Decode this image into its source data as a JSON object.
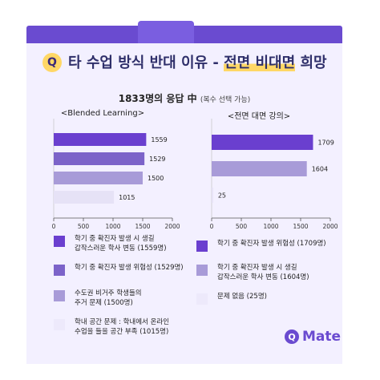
{
  "header": {
    "badge": "Q",
    "title_plain": "타 수업 방식 반대 이유 - ",
    "title_highlight": "전면 비대면",
    "title_suffix": " 희망"
  },
  "subtitle": {
    "main": "1833명의 응답 中 ",
    "note": "(복수 선택 가능)"
  },
  "colors": {
    "topbar": "#6a4bd0",
    "bar_dark": "#6a3fcf",
    "bar_mid": "#7c63c9",
    "bar_light": "#a89bd8",
    "bar_pale": "#e6e2f6",
    "accent": "#ffd766"
  },
  "chart_data": [
    {
      "type": "bar",
      "title": "<Blended Learning>",
      "categories": [
        "학기 중 확진자 발생 시 생길 갑작스러운 학사 변동",
        "학기 중 확진자 발생 위험성",
        "수도권 비거주 학생들의 주거 문제",
        "학내 공간 문제 : 학내에서 온라인 수업을 들을 공간 부족"
      ],
      "values": [
        1559,
        1529,
        1500,
        1015
      ],
      "xlim": [
        0,
        2000
      ],
      "ticks": [
        0,
        500,
        1000,
        1500,
        2000
      ],
      "colors": [
        "#6a3fcf",
        "#7c63c9",
        "#a89bd8",
        "#e6e2f6"
      ]
    },
    {
      "type": "bar",
      "title": "<전면 대면 강의>",
      "categories": [
        "학기 중 확진자 발생 위험성",
        "학기 중 확진자 발생 시 생길 갑작스러운 학사 변동",
        "문제 없음"
      ],
      "values": [
        1709,
        1604,
        25
      ],
      "xlim": [
        0,
        2000
      ],
      "ticks": [
        0,
        500,
        1000,
        1500,
        2000
      ],
      "colors": [
        "#6a3fcf",
        "#a89bd8",
        "#e6e2f6"
      ]
    }
  ],
  "legend_left": [
    {
      "text": "학기 중 확진자 발생 시 생길\n갑작스러운 학사 변동 (1559명)",
      "color": "#6a3fcf"
    },
    {
      "text": "학기 중 확진자 발생 위험성 (1529명)",
      "color": "#7c63c9"
    },
    {
      "text": "수도권 비거주 학생들의\n주거 문제 (1500명)",
      "color": "#a89bd8"
    },
    {
      "text": "학내 공간 문제 : 학내에서 온라인\n수업을 들을 공간 부족 (1015명)",
      "color": "#ede9fb"
    }
  ],
  "legend_right": [
    {
      "text": "학기 중 확진자 발생 위험성 (1709명)",
      "color": "#6a3fcf"
    },
    {
      "text": "학기 중 확진자 발생 시 생길\n갑작스러운 학사 변동 (1604명)",
      "color": "#a89bd8"
    },
    {
      "text": "문제 없음 (25명)",
      "color": "#ede9fb"
    }
  ],
  "logo": {
    "mark": "Q",
    "text": "Mate"
  }
}
